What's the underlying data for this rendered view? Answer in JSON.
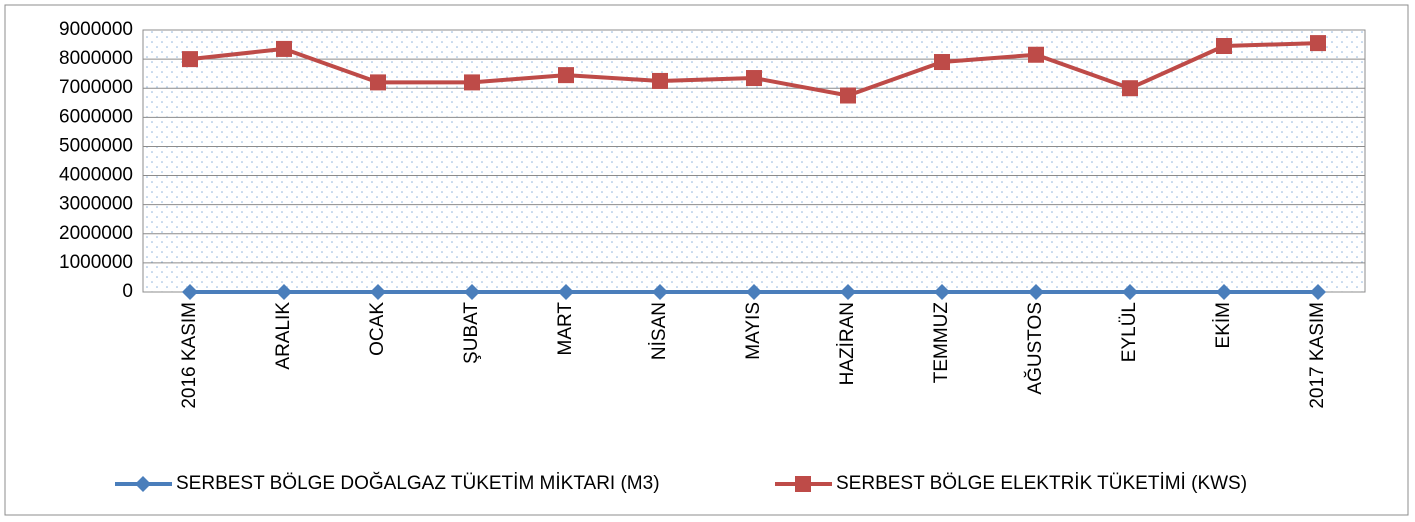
{
  "chart_data": {
    "type": "line",
    "categories": [
      "2016 KASIM",
      "ARALIK",
      "OCAK",
      "ŞUBAT",
      "MART",
      "NİSAN",
      "MAYIS",
      "HAZİRAN",
      "TEMMUZ",
      "AĞUSTOS",
      "EYLÜL",
      "EKİM",
      "2017 KASIM"
    ],
    "series": [
      {
        "name": "SERBEST BÖLGE DOĞALGAZ TÜKETİM MİKTARI (M3)",
        "color": "#4a7ebb",
        "marker": "diamond",
        "values": [
          0,
          0,
          0,
          0,
          0,
          0,
          0,
          0,
          0,
          0,
          0,
          0,
          0
        ]
      },
      {
        "name": "SERBEST BÖLGE ELEKTRİK TÜKETİMİ (KWS)",
        "color": "#be4b48",
        "marker": "square",
        "values": [
          8000000,
          8350000,
          7200000,
          7200000,
          7450000,
          7250000,
          7350000,
          6750000,
          7900000,
          8150000,
          7000000,
          8450000,
          8550000
        ]
      }
    ],
    "ylim": [
      0,
      9000000
    ],
    "yticks": [
      0,
      1000000,
      2000000,
      3000000,
      4000000,
      5000000,
      6000000,
      7000000,
      8000000,
      9000000
    ],
    "grid": true,
    "legend": "bottom"
  }
}
